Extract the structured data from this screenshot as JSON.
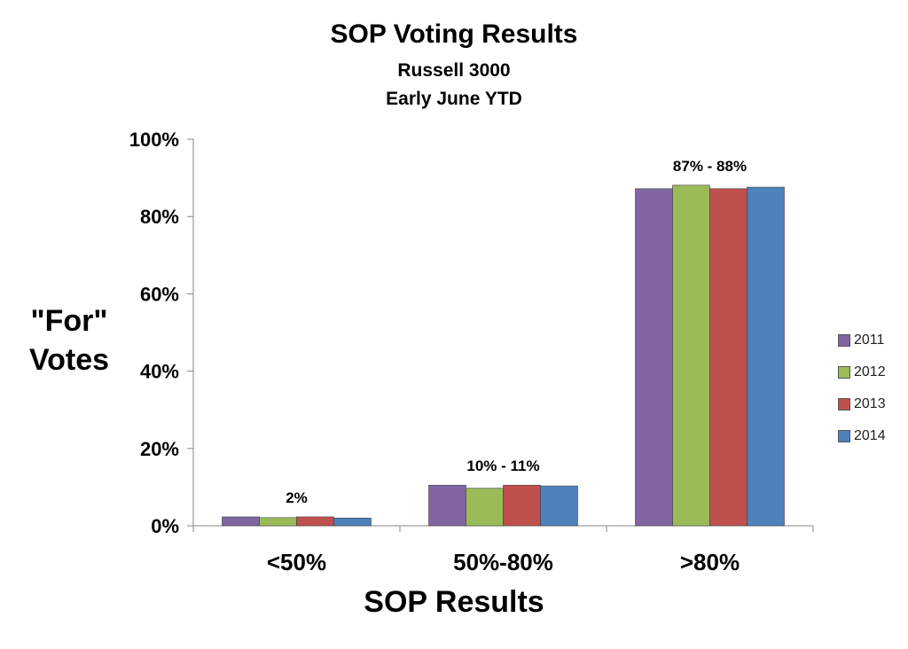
{
  "chart_data": {
    "type": "bar",
    "title": "SOP Voting Results",
    "subtitle_lines": [
      "Russell 3000",
      "Early June YTD"
    ],
    "xlabel": "SOP Results",
    "ylabel_lines": [
      "\"For\"",
      "Votes"
    ],
    "categories": [
      "<50%",
      "50%-80%",
      ">80%"
    ],
    "ylim": [
      0,
      100
    ],
    "yticks": [
      0,
      20,
      40,
      60,
      80,
      100
    ],
    "ytick_labels": [
      "0%",
      "20%",
      "40%",
      "60%",
      "80%",
      "100%"
    ],
    "series": [
      {
        "name": "2011",
        "color": "#8064a2",
        "values": [
          2.3,
          10.5,
          87.2
        ]
      },
      {
        "name": "2012",
        "color": "#9bbb59",
        "values": [
          2.1,
          9.7,
          88.1
        ]
      },
      {
        "name": "2013",
        "color": "#c0504d",
        "values": [
          2.3,
          10.5,
          87.2
        ]
      },
      {
        "name": "2014",
        "color": "#4f81bd",
        "values": [
          2.0,
          10.3,
          87.6
        ]
      }
    ],
    "group_labels": [
      "2%",
      "10% - 11%",
      "87% - 88%"
    ],
    "legend_position": "right",
    "grid": false
  }
}
